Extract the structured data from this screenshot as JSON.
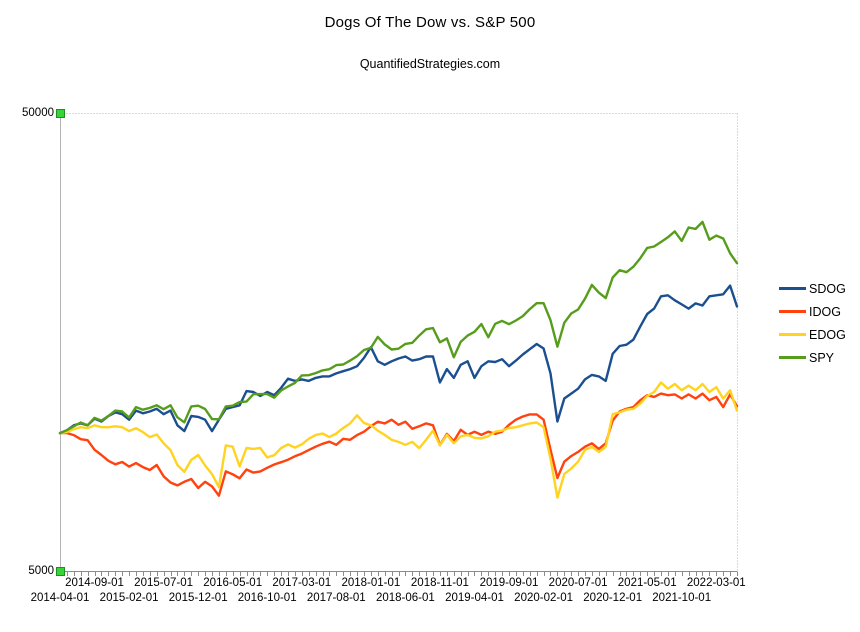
{
  "header": {
    "title": "Dogs Of The Dow vs. S&P 500",
    "subtitle": "QuantifiedStrategies.com"
  },
  "chart_data": {
    "type": "line",
    "title": "Dogs Of The Dow vs. S&P 500",
    "subtitle": "QuantifiedStrategies.com",
    "yscale": "log",
    "ylim": [
      5000,
      50000
    ],
    "y_ticks": [
      {
        "value": 50000,
        "label": "50000"
      },
      {
        "value": 5000,
        "label": "5000"
      }
    ],
    "x_interval": "monthly",
    "x_start": "2014-04-01",
    "n_points": 99,
    "x_label_step": 5,
    "x_labels": [
      "2014-04-01",
      "2014-09-01",
      "2015-02-01",
      "2015-07-01",
      "2015-12-01",
      "2016-05-01",
      "2016-10-01",
      "2017-03-01",
      "2017-08-01",
      "2018-01-01",
      "2018-06-01",
      "2018-11-01",
      "2019-04-01",
      "2019-09-01",
      "2020-02-01",
      "2020-07-01",
      "2020-12-01",
      "2021-05-01",
      "2021-10-01",
      "2022-03-01"
    ],
    "grid": false,
    "legend_position": "right",
    "axis_colors": {
      "left": "#b5b5b5",
      "top_right_border": "#b5b5b5",
      "bottom": "#8c8c8c"
    },
    "selection_handle_color": "#37D437",
    "series": [
      {
        "name": "SDOG",
        "color": "#1B4F8F",
        "values": [
          10000,
          10150,
          10400,
          10500,
          10400,
          10750,
          10600,
          10900,
          11100,
          11000,
          10700,
          11200,
          11050,
          11150,
          11300,
          11000,
          11200,
          10400,
          10100,
          10900,
          10850,
          10700,
          10100,
          10700,
          11300,
          11400,
          11500,
          12350,
          12300,
          12050,
          12300,
          12100,
          12550,
          13150,
          13000,
          13100,
          13000,
          13200,
          13300,
          13300,
          13500,
          13650,
          13800,
          14000,
          14600,
          15400,
          14350,
          14100,
          14350,
          14550,
          14700,
          14400,
          14500,
          14700,
          14700,
          12900,
          13800,
          13200,
          14100,
          14350,
          13200,
          14000,
          14350,
          14300,
          14500,
          14000,
          14400,
          14850,
          15250,
          15650,
          15300,
          13500,
          10600,
          11900,
          12200,
          12500,
          13100,
          13400,
          13300,
          13000,
          14900,
          15500,
          15600,
          16000,
          17100,
          18200,
          18700,
          19900,
          20000,
          19500,
          19100,
          18700,
          19200,
          19000,
          19900,
          20000,
          20100,
          21000,
          18900
        ]
      },
      {
        "name": "IDOG",
        "color": "#FF420E",
        "values": [
          10000,
          10000,
          9900,
          9700,
          9650,
          9200,
          8960,
          8700,
          8550,
          8650,
          8450,
          8600,
          8430,
          8310,
          8520,
          8050,
          7800,
          7690,
          7830,
          7940,
          7590,
          7830,
          7650,
          7300,
          8250,
          8130,
          7970,
          8330,
          8200,
          8250,
          8400,
          8540,
          8640,
          8750,
          8900,
          9020,
          9180,
          9340,
          9480,
          9580,
          9430,
          9720,
          9670,
          9900,
          10070,
          10350,
          10590,
          10500,
          10700,
          10430,
          10590,
          10220,
          10350,
          10500,
          10400,
          9420,
          9960,
          9600,
          10170,
          9910,
          10070,
          9910,
          10070,
          9960,
          10070,
          10430,
          10700,
          10870,
          10990,
          10990,
          10700,
          9200,
          7980,
          8660,
          8910,
          9100,
          9340,
          9500,
          9240,
          9500,
          10650,
          11150,
          11300,
          11400,
          11800,
          12100,
          12000,
          12200,
          12100,
          12150,
          11900,
          12150,
          11900,
          12200,
          11800,
          12000,
          11400,
          12150,
          11450
        ]
      },
      {
        "name": "EDOG",
        "color": "#FFD320",
        "values": [
          10000,
          10050,
          10200,
          10300,
          10250,
          10400,
          10300,
          10300,
          10350,
          10300,
          10100,
          10250,
          10050,
          9800,
          9930,
          9500,
          9180,
          8520,
          8230,
          8740,
          8960,
          8500,
          8140,
          7620,
          9400,
          9340,
          8460,
          9280,
          9240,
          9280,
          8850,
          8950,
          9280,
          9450,
          9300,
          9450,
          9720,
          9900,
          9980,
          9800,
          9980,
          10260,
          10500,
          10940,
          10520,
          10400,
          10130,
          9910,
          9670,
          9570,
          9430,
          9570,
          9270,
          9670,
          10130,
          9400,
          9910,
          9500,
          9840,
          9910,
          9770,
          9740,
          9840,
          10070,
          10130,
          10260,
          10300,
          10400,
          10500,
          10550,
          10300,
          8800,
          7230,
          8140,
          8370,
          8660,
          9190,
          9330,
          9100,
          9330,
          11000,
          11100,
          11250,
          11300,
          11600,
          12050,
          12300,
          12900,
          12500,
          12800,
          12400,
          12700,
          12400,
          12800,
          12300,
          12600,
          11900,
          12400,
          11200
        ]
      },
      {
        "name": "SPY",
        "color": "#579D1C",
        "values": [
          10000,
          10150,
          10350,
          10550,
          10400,
          10800,
          10650,
          10900,
          11200,
          11150,
          10820,
          11400,
          11250,
          11350,
          11500,
          11280,
          11500,
          10830,
          10560,
          11440,
          11480,
          11290,
          10730,
          10720,
          11440,
          11480,
          11690,
          11720,
          12160,
          12170,
          12170,
          11950,
          12390,
          12640,
          12870,
          13370,
          13380,
          13520,
          13710,
          13790,
          14080,
          14120,
          14400,
          14730,
          15190,
          15360,
          16220,
          15620,
          15230,
          15290,
          15660,
          15750,
          16330,
          16850,
          16960,
          15790,
          16100,
          14650,
          15820,
          16330,
          16640,
          17310,
          16200,
          17330,
          17580,
          17290,
          17620,
          18010,
          18660,
          19220,
          19220,
          17640,
          15440,
          17410,
          18250,
          18620,
          19660,
          21070,
          20270,
          19720,
          21870,
          22680,
          22460,
          23090,
          24100,
          25380,
          25560,
          26140,
          26770,
          27570,
          26280,
          28120,
          27920,
          28920,
          26450,
          27000,
          26600,
          24700,
          23500
        ]
      }
    ]
  }
}
